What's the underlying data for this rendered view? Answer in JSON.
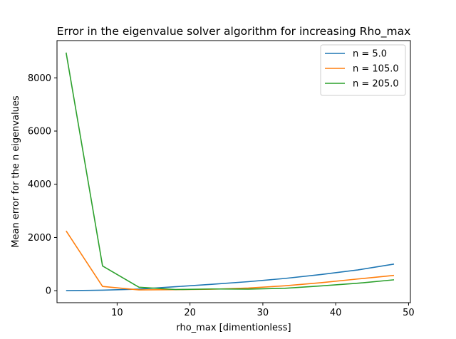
{
  "chart_data": {
    "type": "line",
    "title": "Error in the eigenvalue solver algorithm for increasing Rho_max",
    "xlabel": "rho_max [dimentionless]",
    "ylabel": "Mean error for the n eigenvalues",
    "xlim": [
      1.75,
      50.25
    ],
    "ylim": [
      -450,
      9400
    ],
    "xticks": [
      10,
      20,
      30,
      40,
      50
    ],
    "yticks": [
      0,
      2000,
      4000,
      6000,
      8000
    ],
    "grid": false,
    "legend_position": "upper right",
    "series": [
      {
        "name": "n = 5.0",
        "color": "#1f77b4",
        "x": [
          3,
          8,
          13,
          18,
          23,
          28,
          33,
          38,
          43,
          48
        ],
        "y": [
          2,
          20,
          60,
          150,
          240,
          340,
          460,
          610,
          780,
          1000
        ]
      },
      {
        "name": "n = 105.0",
        "color": "#ff7f0e",
        "x": [
          3,
          8,
          13,
          18,
          23,
          28,
          33,
          38,
          43,
          48
        ],
        "y": [
          2250,
          160,
          30,
          40,
          55,
          100,
          185,
          300,
          440,
          575
        ]
      },
      {
        "name": "n = 205.0",
        "color": "#2ca02c",
        "x": [
          3,
          8,
          13,
          18,
          23,
          28,
          33,
          38,
          43,
          48
        ],
        "y": [
          8950,
          930,
          130,
          45,
          65,
          60,
          90,
          180,
          280,
          410
        ]
      }
    ]
  }
}
